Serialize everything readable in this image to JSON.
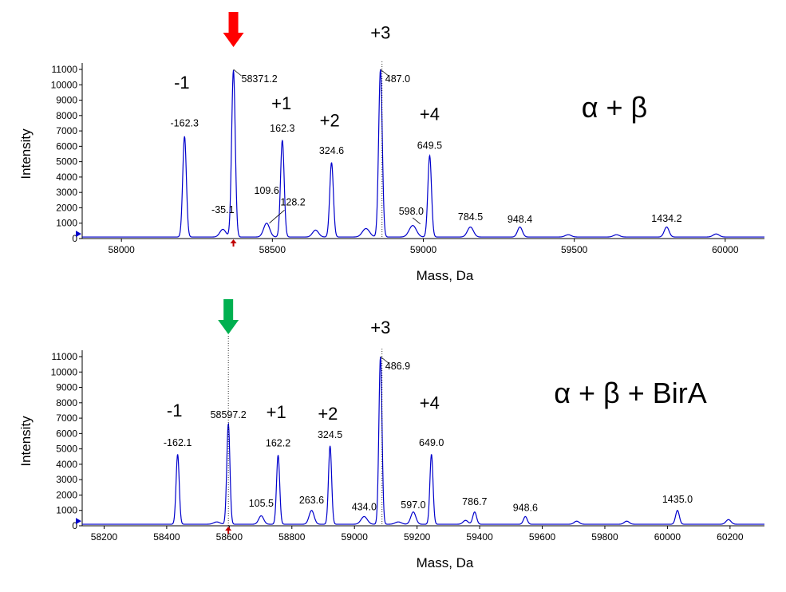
{
  "colors": {
    "trace": "#0000cc",
    "red_arrow": "#ff0000",
    "green_arrow": "#00b050",
    "small_marker": "#c00000",
    "axis": "#000000"
  },
  "chart_data": [
    {
      "type": "line",
      "condition_label": "α + β",
      "xlabel": "Mass, Da",
      "ylabel": "Intensity",
      "xlim": [
        57870,
        60130
      ],
      "ylim": [
        0,
        11000
      ],
      "xticks": [
        "58000",
        "58500",
        "59000",
        "59500",
        "60000"
      ],
      "yticks": [
        "0",
        "1000",
        "2000",
        "3000",
        "4000",
        "5000",
        "6000",
        "7000",
        "8000",
        "9000",
        "10000",
        "11000"
      ],
      "baseline": 100,
      "peaks": [
        {
          "x": 58209,
          "y": 6650,
          "w": 6
        },
        {
          "x": 58336,
          "y": 600,
          "w": 10
        },
        {
          "x": 58371,
          "y": 10950,
          "w": 6
        },
        {
          "x": 58481,
          "y": 1000,
          "w": 10
        },
        {
          "x": 58533,
          "y": 6400,
          "w": 6
        },
        {
          "x": 58643,
          "y": 550,
          "w": 10
        },
        {
          "x": 58696,
          "y": 4950,
          "w": 6
        },
        {
          "x": 58810,
          "y": 650,
          "w": 12
        },
        {
          "x": 58858,
          "y": 11000,
          "w": 6
        },
        {
          "x": 58965,
          "y": 850,
          "w": 12
        },
        {
          "x": 59021,
          "y": 5400,
          "w": 6
        },
        {
          "x": 59156,
          "y": 750,
          "w": 10
        },
        {
          "x": 59320,
          "y": 750,
          "w": 8
        },
        {
          "x": 59480,
          "y": 250,
          "w": 10
        },
        {
          "x": 59640,
          "y": 250,
          "w": 10
        },
        {
          "x": 59806,
          "y": 750,
          "w": 8
        },
        {
          "x": 59970,
          "y": 300,
          "w": 10
        }
      ],
      "annotations": [
        {
          "x": 58209,
          "y": 7300,
          "text": "-162.3"
        },
        {
          "x": 58336,
          "y": 1650,
          "text": "-35.1"
        },
        {
          "x": 58481,
          "y": 2900,
          "text": "109.6"
        },
        {
          "x": 58568,
          "y": 2150,
          "text": "128.2"
        },
        {
          "x": 58533,
          "y": 6950,
          "text": "162.3"
        },
        {
          "x": 58696,
          "y": 5500,
          "text": "324.6"
        },
        {
          "x": 59021,
          "y": 5850,
          "text": "649.5"
        },
        {
          "x": 58960,
          "y": 1550,
          "text": "598.0"
        },
        {
          "x": 59156,
          "y": 1200,
          "text": "784.5"
        },
        {
          "x": 59320,
          "y": 1050,
          "text": "948.4"
        },
        {
          "x": 59806,
          "y": 1100,
          "text": "1434.2"
        }
      ],
      "labels": {
        "apex": "58371.2",
        "apex_x": 58371,
        "plus3": "487.0",
        "plus3_x": 58858
      },
      "charges": [
        {
          "text": "-1",
          "x": 58200,
          "y": 9750
        },
        {
          "text": "+1",
          "x": 58530,
          "y": 8400
        },
        {
          "text": "+2",
          "x": 58690,
          "y": 7300
        },
        {
          "text": "+3",
          "x": 58858,
          "y": 13000
        },
        {
          "text": "+4",
          "x": 59021,
          "y": 7700
        }
      ],
      "top_arrow_x": 58371,
      "top_arrow_color": "#ff0000"
    },
    {
      "type": "line",
      "condition_label": "α + β + BirA",
      "xlabel": "Mass, Da",
      "ylabel": "Intensity",
      "xlim": [
        58130,
        60310
      ],
      "ylim": [
        0,
        11000
      ],
      "xticks": [
        "58200",
        "58400",
        "58600",
        "58800",
        "59000",
        "59200",
        "59400",
        "59600",
        "59800",
        "60000",
        "60200"
      ],
      "yticks": [
        "0",
        "1000",
        "2000",
        "3000",
        "4000",
        "5000",
        "6000",
        "7000",
        "8000",
        "9000",
        "10000",
        "11000"
      ],
      "baseline": 100,
      "peaks": [
        {
          "x": 58435,
          "y": 4650,
          "w": 5
        },
        {
          "x": 58560,
          "y": 250,
          "w": 10
        },
        {
          "x": 58597,
          "y": 6650,
          "w": 5
        },
        {
          "x": 58702,
          "y": 650,
          "w": 8
        },
        {
          "x": 58756,
          "y": 4600,
          "w": 5
        },
        {
          "x": 58863,
          "y": 1000,
          "w": 8
        },
        {
          "x": 58922,
          "y": 5200,
          "w": 5
        },
        {
          "x": 59031,
          "y": 600,
          "w": 10
        },
        {
          "x": 59083,
          "y": 11000,
          "w": 5
        },
        {
          "x": 59140,
          "y": 250,
          "w": 10
        },
        {
          "x": 59188,
          "y": 900,
          "w": 8
        },
        {
          "x": 59246,
          "y": 4650,
          "w": 5
        },
        {
          "x": 59355,
          "y": 350,
          "w": 8
        },
        {
          "x": 59384,
          "y": 900,
          "w": 6
        },
        {
          "x": 59546,
          "y": 600,
          "w": 6
        },
        {
          "x": 59710,
          "y": 300,
          "w": 8
        },
        {
          "x": 59870,
          "y": 300,
          "w": 8
        },
        {
          "x": 60032,
          "y": 1000,
          "w": 6
        },
        {
          "x": 60195,
          "y": 400,
          "w": 8
        }
      ],
      "annotations": [
        {
          "x": 58435,
          "y": 5200,
          "text": "-162.1"
        },
        {
          "x": 58597,
          "y": 7000,
          "text": "58597.2"
        },
        {
          "x": 58702,
          "y": 1250,
          "text": "105.5"
        },
        {
          "x": 58756,
          "y": 5150,
          "text": "162.2"
        },
        {
          "x": 58863,
          "y": 1450,
          "text": "263.6"
        },
        {
          "x": 58922,
          "y": 5700,
          "text": "324.5"
        },
        {
          "x": 59031,
          "y": 1000,
          "text": "434.0"
        },
        {
          "x": 59188,
          "y": 1150,
          "text": "597.0"
        },
        {
          "x": 59246,
          "y": 5200,
          "text": "649.0"
        },
        {
          "x": 59384,
          "y": 1350,
          "text": "786.7"
        },
        {
          "x": 59546,
          "y": 950,
          "text": "948.6"
        },
        {
          "x": 60032,
          "y": 1500,
          "text": "1435.0"
        }
      ],
      "labels": {
        "plus3": "486.9",
        "plus3_x": 59083
      },
      "charges": [
        {
          "text": "-1",
          "x": 58425,
          "y": 7100
        },
        {
          "text": "+1",
          "x": 58750,
          "y": 7000
        },
        {
          "text": "+2",
          "x": 58915,
          "y": 6900
        },
        {
          "text": "+3",
          "x": 59083,
          "y": 12500
        },
        {
          "text": "+4",
          "x": 59240,
          "y": 7600
        }
      ],
      "top_arrow_x": 58597,
      "top_arrow_color": "#00b050"
    }
  ]
}
